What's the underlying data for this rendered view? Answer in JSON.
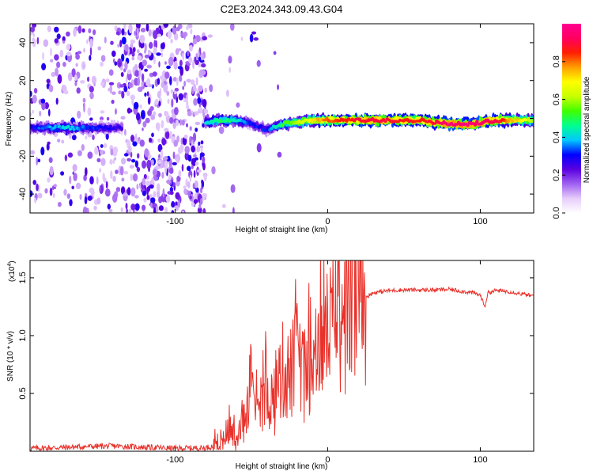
{
  "title": "C2E3.2024.343.09.43.G04",
  "chart_data": [
    {
      "type": "heatmap",
      "xlabel": "Height of straight line (km)",
      "ylabel": "Frequency (Hz)",
      "xlim": [
        -195,
        135
      ],
      "ylim": [
        -50,
        50
      ],
      "x_ticks": [
        -100,
        0,
        100
      ],
      "x_tick_labels": [
        "-100",
        "0",
        "100"
      ],
      "y_ticks": [
        -40,
        -20,
        0,
        20,
        40
      ],
      "y_tick_labels": [
        "-40",
        "-20",
        "0",
        "20",
        "40"
      ],
      "colorbar": {
        "label": "Normalized spectral amplitude",
        "range": [
          0,
          1
        ],
        "ticks": [
          0.0,
          0.2,
          0.4,
          0.6,
          0.8
        ],
        "tick_labels": [
          "0.0",
          "0.2",
          "0.4",
          "0.6",
          "0.8"
        ],
        "colors": [
          "#ffffff",
          "#e6cdfb",
          "#a060f0",
          "#5a00e0",
          "#0000ff",
          "#00c8ff",
          "#00ff90",
          "#40ff00",
          "#c8ff00",
          "#ffff00",
          "#ffa000",
          "#ff2000",
          "#ff0060",
          "#ff0090"
        ]
      },
      "ridge": {
        "x": [
          -195,
          -170,
          -150,
          -135,
          -80,
          -70,
          -60,
          -50,
          -40,
          -30,
          -20,
          -10,
          0,
          20,
          40,
          60,
          80,
          95,
          110,
          135
        ],
        "y": [
          -5,
          -5,
          -5,
          -5,
          -2,
          -1,
          -1,
          -3,
          -6,
          -3,
          -2,
          -1,
          -1,
          -1,
          -1,
          -1,
          -3,
          -3,
          -1,
          -1
        ],
        "amplitude": [
          0.3,
          0.4,
          0.3,
          0.25,
          0.4,
          0.5,
          0.45,
          0.3,
          0.3,
          0.5,
          0.6,
          0.7,
          0.8,
          0.9,
          0.9,
          0.85,
          0.95,
          0.95,
          0.9,
          0.6
        ]
      },
      "noise_regions": [
        {
          "x": [
            -195,
            -135
          ],
          "density": 0.35
        },
        {
          "x": [
            -135,
            -80
          ],
          "density": 0.85
        },
        {
          "x": [
            -80,
            -30
          ],
          "density": 0.04
        }
      ]
    },
    {
      "type": "line",
      "xlabel": "Height of straight line (km)",
      "ylabel": "SNR (10 * v/v)",
      "y_scale_label": "(x10",
      "y_scale_exponent": "4",
      "y_scale_suffix": ")",
      "xlim": [
        -195,
        135
      ],
      "ylim": [
        0,
        16500
      ],
      "x_ticks": [
        -100,
        0,
        100
      ],
      "x_tick_labels": [
        "-100",
        "0",
        "100"
      ],
      "y_ticks": [
        5000,
        10000,
        15000
      ],
      "y_tick_labels": [
        "0.5",
        "1.0",
        "1.5"
      ],
      "series": [
        {
          "color": "#e8312a",
          "x": [
            -195,
            -180,
            -160,
            -140,
            -120,
            -100,
            -80,
            -70,
            -65,
            -60,
            -55,
            -50,
            -45,
            -40,
            -35,
            -30,
            -25,
            -20,
            -15,
            -10,
            -5,
            0,
            5,
            10,
            15,
            20,
            30,
            40,
            50,
            60,
            70,
            80,
            90,
            95,
            100,
            103,
            105,
            110,
            120,
            135
          ],
          "y": [
            250,
            300,
            400,
            450,
            350,
            250,
            300,
            600,
            1800,
            1000,
            2500,
            4500,
            3000,
            5500,
            4000,
            7000,
            6500,
            8000,
            6500,
            9000,
            9500,
            10000,
            11500,
            12000,
            12500,
            13000,
            13700,
            13900,
            13950,
            13950,
            13950,
            14000,
            13800,
            13700,
            13500,
            12500,
            13700,
            13900,
            13800,
            13400
          ]
        }
      ]
    }
  ]
}
